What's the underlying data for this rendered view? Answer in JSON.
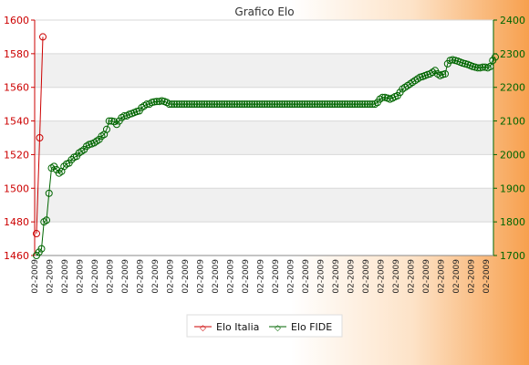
{
  "chart_data": {
    "type": "line",
    "title": "Grafico Elo",
    "grid": "horizontal bands",
    "legend_placement": "bottom-center",
    "left_axis": {
      "ticks": [
        "1460",
        "1480",
        "1500",
        "1520",
        "1540",
        "1560",
        "1580",
        "1600"
      ],
      "ylim": [
        1460,
        1600
      ],
      "color": "#cc0000"
    },
    "right_axis": {
      "ticks": [
        "1700",
        "1800",
        "1900",
        "2000",
        "2100",
        "2200",
        "2300",
        "2400"
      ],
      "ylim": [
        1700,
        2400
      ],
      "color": "#006600"
    },
    "x_tick_text": "02-2009",
    "series": [
      {
        "name": "Elo Italia",
        "color": "#cc0000",
        "axis": "left",
        "values": [
          1473,
          1530,
          1590
        ]
      },
      {
        "name": "Elo FIDE",
        "color": "#006600",
        "axis": "right",
        "values": [
          1700,
          1710,
          1720,
          1800,
          1805,
          1885,
          1960,
          1965,
          1955,
          1945,
          1950,
          1965,
          1972,
          1975,
          1985,
          1992,
          1995,
          2005,
          2010,
          2015,
          2025,
          2030,
          2032,
          2035,
          2040,
          2045,
          2055,
          2060,
          2075,
          2100,
          2100,
          2098,
          2090,
          2100,
          2110,
          2115,
          2115,
          2120,
          2122,
          2125,
          2128,
          2130,
          2140,
          2145,
          2150,
          2150,
          2155,
          2157,
          2158,
          2158,
          2160,
          2158,
          2155,
          2150,
          2150,
          2150,
          2150,
          2150,
          2150,
          2150,
          2150,
          2150,
          2150,
          2150,
          2150,
          2150,
          2150,
          2150,
          2150,
          2150,
          2150,
          2150,
          2150,
          2150,
          2150,
          2150,
          2150,
          2150,
          2150,
          2150,
          2150,
          2150,
          2150,
          2150,
          2150,
          2150,
          2150,
          2150,
          2150,
          2150,
          2150,
          2150,
          2150,
          2150,
          2150,
          2150,
          2150,
          2150,
          2150,
          2150,
          2150,
          2150,
          2150,
          2150,
          2150,
          2150,
          2150,
          2150,
          2150,
          2150,
          2150,
          2150,
          2150,
          2150,
          2150,
          2150,
          2150,
          2150,
          2150,
          2150,
          2150,
          2150,
          2150,
          2150,
          2150,
          2150,
          2150,
          2150,
          2150,
          2150,
          2150,
          2150,
          2150,
          2150,
          2150,
          2150,
          2155,
          2165,
          2170,
          2170,
          2168,
          2165,
          2168,
          2172,
          2175,
          2185,
          2195,
          2200,
          2205,
          2210,
          2215,
          2220,
          2225,
          2230,
          2232,
          2235,
          2238,
          2240,
          2245,
          2250,
          2240,
          2235,
          2238,
          2240,
          2270,
          2280,
          2282,
          2280,
          2278,
          2275,
          2272,
          2270,
          2268,
          2265,
          2262,
          2260,
          2258,
          2258,
          2260,
          2260,
          2258,
          2262,
          2280,
          2290
        ]
      }
    ]
  }
}
